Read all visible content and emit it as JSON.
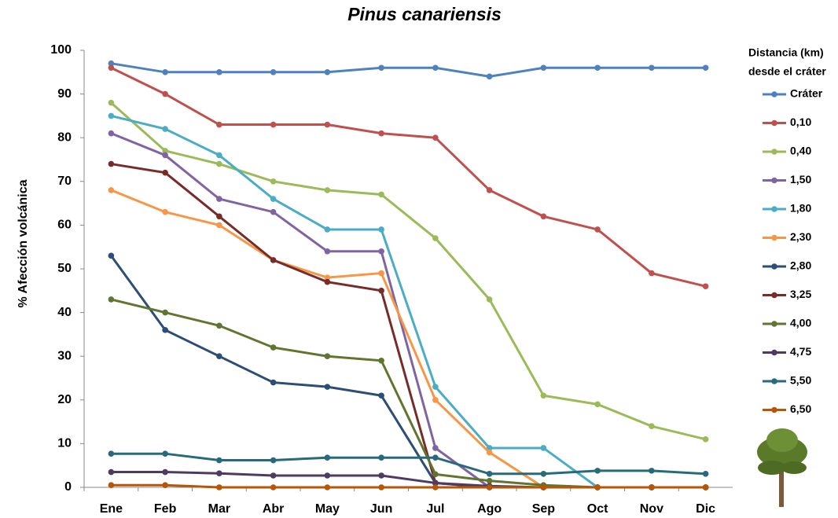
{
  "chart_data": {
    "type": "line",
    "title": "Pinus canariensis",
    "y_label": "% Afección volcánica",
    "legend_title": [
      "Distancia (km)",
      "desde el cráter"
    ],
    "categories": [
      "Ene",
      "Feb",
      "Mar",
      "Abr",
      "May",
      "Jun",
      "Jul",
      "Ago",
      "Sep",
      "Oct",
      "Nov",
      "Dic"
    ],
    "ylim": [
      0,
      100
    ],
    "yticks": [
      0,
      10,
      20,
      30,
      40,
      50,
      60,
      70,
      80,
      90,
      100
    ],
    "legend": "right",
    "series": [
      {
        "name": "Cráter",
        "color": "#4f81bd",
        "values": [
          97,
          95,
          95,
          95,
          95,
          96,
          96,
          94,
          96,
          96,
          96,
          96
        ]
      },
      {
        "name": "0,10",
        "color": "#c0504d",
        "values": [
          96,
          90,
          83,
          83,
          83,
          81,
          80,
          68,
          62,
          59,
          49,
          46
        ]
      },
      {
        "name": "0,40",
        "color": "#9bbb59",
        "values": [
          88,
          77,
          74,
          70,
          68,
          67,
          57,
          43,
          21,
          19,
          14,
          11
        ]
      },
      {
        "name": "1,50",
        "color": "#8064a2",
        "values": [
          81,
          76,
          66,
          63,
          54,
          54,
          9,
          0,
          0,
          0,
          0,
          0
        ]
      },
      {
        "name": "1,80",
        "color": "#4bacc6",
        "values": [
          85,
          82,
          76,
          66,
          59,
          59,
          23,
          9,
          9,
          0,
          0,
          0
        ]
      },
      {
        "name": "2,30",
        "color": "#f79646",
        "values": [
          68,
          63,
          60,
          52,
          48,
          49,
          20,
          8,
          0,
          0,
          0,
          0
        ]
      },
      {
        "name": "2,80",
        "color": "#2c4d75",
        "values": [
          53,
          36,
          30,
          24,
          23,
          21,
          1,
          0,
          0,
          0,
          0,
          0
        ]
      },
      {
        "name": "3,25",
        "color": "#772c2a",
        "values": [
          74,
          72,
          62,
          52,
          47,
          45,
          1,
          0,
          0,
          0,
          0,
          0
        ]
      },
      {
        "name": "4,00",
        "color": "#5f7530",
        "values": [
          43,
          40,
          37,
          32,
          30,
          29,
          3,
          1.5,
          0.5,
          0,
          0,
          0
        ]
      },
      {
        "name": "4,75",
        "color": "#4d3b62",
        "values": [
          3.5,
          3.5,
          3.2,
          2.7,
          2.7,
          2.7,
          1,
          0.3,
          0,
          0,
          0,
          0
        ]
      },
      {
        "name": "5,50",
        "color": "#276a7c",
        "values": [
          7.7,
          7.7,
          6.2,
          6.2,
          6.8,
          6.8,
          6.8,
          3.1,
          3.1,
          3.8,
          3.8,
          3.1
        ]
      },
      {
        "name": "6,50",
        "color": "#b65708",
        "values": [
          0.5,
          0.5,
          0,
          0,
          0,
          0,
          0,
          0,
          0,
          0,
          0,
          0
        ]
      }
    ]
  }
}
